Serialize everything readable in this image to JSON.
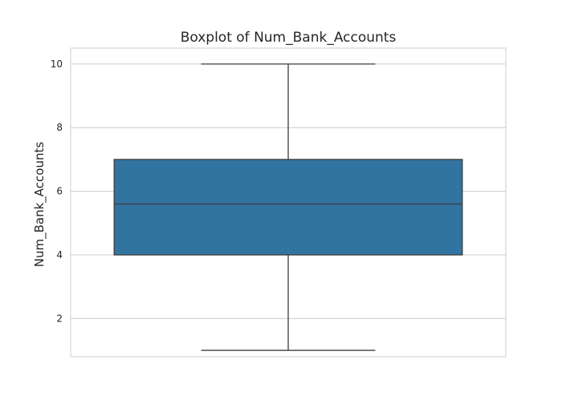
{
  "chart_data": {
    "type": "box",
    "title": "Boxplot of Num_Bank_Accounts",
    "xlabel": "",
    "ylabel": "Num_Bank_Accounts",
    "ylim": [
      0.8,
      10.5
    ],
    "yticks": [
      2,
      4,
      6,
      8,
      10
    ],
    "grid": true,
    "series": [
      {
        "min": 1,
        "q1": 4,
        "median": 5.6,
        "q3": 7,
        "max": 10
      }
    ],
    "colors": {
      "box": "#3274a1",
      "lines": "#3d3d3d",
      "grid": "#cccccc",
      "frame": "#cccccc"
    }
  }
}
